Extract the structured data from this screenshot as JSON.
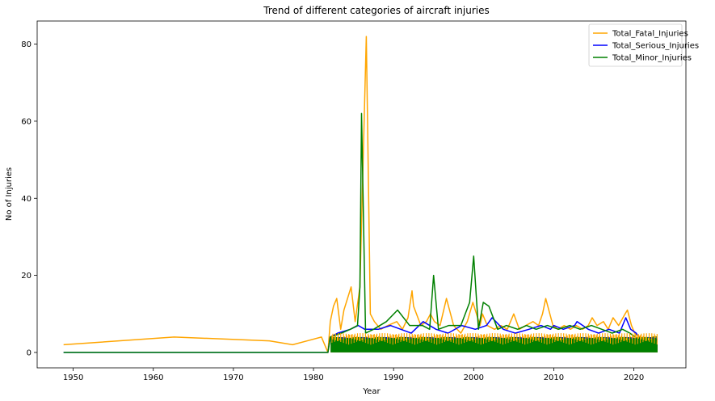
{
  "chart_data": {
    "type": "line",
    "title": "Trend of different categories of aircraft injuries",
    "xlabel": "Year",
    "ylabel": "No of Injuries",
    "xlim": [
      1945.5,
      2026.5
    ],
    "ylim": [
      -4,
      86
    ],
    "xticks": [
      1950,
      1960,
      1970,
      1980,
      1990,
      2000,
      2010,
      2020
    ],
    "yticks": [
      0,
      20,
      40,
      60,
      80
    ],
    "grid": false,
    "legend_position": "top-right",
    "series": [
      {
        "name": "Total_Fatal_Injuries",
        "color": "#ffa500",
        "points": [
          [
            1948.8,
            2
          ],
          [
            1962.6,
            4
          ],
          [
            1974.5,
            3
          ],
          [
            1977.4,
            2
          ],
          [
            1981.0,
            4
          ],
          [
            1981.8,
            0
          ],
          [
            1982.1,
            8
          ],
          [
            1982.5,
            12
          ],
          [
            1982.9,
            14
          ],
          [
            1983.4,
            6
          ],
          [
            1983.8,
            11
          ],
          [
            1984.7,
            17
          ],
          [
            1985.2,
            8
          ],
          [
            1985.8,
            17
          ],
          [
            1986.6,
            82
          ],
          [
            1987.1,
            10
          ],
          [
            1987.6,
            8
          ],
          [
            1988.4,
            6
          ],
          [
            1989.3,
            7
          ],
          [
            1990.4,
            8
          ],
          [
            1991.1,
            6
          ],
          [
            1991.8,
            9
          ],
          [
            1992.3,
            16
          ],
          [
            1992.5,
            12
          ],
          [
            1993.4,
            7
          ],
          [
            1994.1,
            8
          ],
          [
            1994.6,
            10
          ],
          [
            1995.1,
            8
          ],
          [
            1995.8,
            7
          ],
          [
            1996.6,
            14
          ],
          [
            1997.5,
            7
          ],
          [
            1998.4,
            5
          ],
          [
            1999.2,
            8
          ],
          [
            1999.9,
            13
          ],
          [
            2000.8,
            7
          ],
          [
            2001.1,
            10
          ],
          [
            2001.7,
            7
          ],
          [
            2002.6,
            6
          ],
          [
            2003.4,
            7
          ],
          [
            2004.2,
            6
          ],
          [
            2005.0,
            10
          ],
          [
            2005.7,
            6
          ],
          [
            2006.5,
            7
          ],
          [
            2007.4,
            8
          ],
          [
            2008.1,
            7
          ],
          [
            2008.6,
            10
          ],
          [
            2009.0,
            14
          ],
          [
            2009.9,
            7
          ],
          [
            2010.5,
            6
          ],
          [
            2011.3,
            7
          ],
          [
            2012.1,
            6
          ],
          [
            2012.8,
            7
          ],
          [
            2013.6,
            6
          ],
          [
            2014.3,
            7
          ],
          [
            2014.8,
            9
          ],
          [
            2015.4,
            7
          ],
          [
            2016.2,
            8
          ],
          [
            2016.8,
            6
          ],
          [
            2017.4,
            9
          ],
          [
            2018.1,
            7
          ],
          [
            2018.9,
            10
          ],
          [
            2019.2,
            11
          ],
          [
            2019.7,
            7
          ],
          [
            2020.1,
            5
          ],
          [
            2020.8,
            4
          ],
          [
            2021.5,
            3
          ],
          [
            2022.3,
            4
          ],
          [
            2022.9,
            2
          ]
        ]
      },
      {
        "name": "Total_Serious_Injuries",
        "color": "#0000ff",
        "points": [
          [
            1948.8,
            0
          ],
          [
            1981.8,
            0
          ],
          [
            1982.1,
            4
          ],
          [
            1983.0,
            5
          ],
          [
            1984.6,
            6
          ],
          [
            1985.6,
            7
          ],
          [
            1986.4,
            6
          ],
          [
            1988.1,
            6
          ],
          [
            1989.6,
            7
          ],
          [
            1990.9,
            6
          ],
          [
            1992.2,
            5
          ],
          [
            1993.7,
            8
          ],
          [
            1995.3,
            6
          ],
          [
            1996.8,
            5
          ],
          [
            1998.5,
            7
          ],
          [
            2000.2,
            6
          ],
          [
            2001.6,
            7
          ],
          [
            2002.3,
            9
          ],
          [
            2003.7,
            6
          ],
          [
            2005.2,
            5
          ],
          [
            2006.9,
            6
          ],
          [
            2008.4,
            7
          ],
          [
            2009.6,
            6
          ],
          [
            2010.0,
            7
          ],
          [
            2011.2,
            6
          ],
          [
            2012.6,
            7
          ],
          [
            2012.9,
            8
          ],
          [
            2014.3,
            6
          ],
          [
            2015.6,
            5
          ],
          [
            2016.9,
            6
          ],
          [
            2018.2,
            5
          ],
          [
            2019.0,
            9
          ],
          [
            2019.6,
            6
          ],
          [
            2020.3,
            5
          ],
          [
            2020.9,
            3
          ],
          [
            2021.4,
            2
          ],
          [
            2022.1,
            3
          ],
          [
            2022.9,
            2
          ]
        ]
      },
      {
        "name": "Total_Minor_Injuries",
        "color": "#008000",
        "points": [
          [
            1948.8,
            0
          ],
          [
            1981.8,
            0
          ],
          [
            1982.1,
            4
          ],
          [
            1983.5,
            5
          ],
          [
            1984.6,
            6
          ],
          [
            1985.5,
            7
          ],
          [
            1985.8,
            17
          ],
          [
            1986.0,
            62
          ],
          [
            1986.5,
            5
          ],
          [
            1987.5,
            6
          ],
          [
            1989.1,
            8
          ],
          [
            1990.5,
            11
          ],
          [
            1992.0,
            7
          ],
          [
            1992.8,
            7
          ],
          [
            1993.6,
            7
          ],
          [
            1994.5,
            6
          ],
          [
            1995.0,
            20
          ],
          [
            1995.6,
            6
          ],
          [
            1996.9,
            7
          ],
          [
            1998.4,
            7
          ],
          [
            1999.5,
            13
          ],
          [
            2000.0,
            25
          ],
          [
            2000.6,
            6
          ],
          [
            2001.2,
            13
          ],
          [
            2001.9,
            12
          ],
          [
            2003.0,
            6
          ],
          [
            2004.1,
            7
          ],
          [
            2005.5,
            6
          ],
          [
            2006.6,
            7
          ],
          [
            2007.8,
            6
          ],
          [
            2009.2,
            7
          ],
          [
            2010.6,
            6
          ],
          [
            2012.0,
            7
          ],
          [
            2013.3,
            6
          ],
          [
            2014.7,
            7
          ],
          [
            2016.0,
            6
          ],
          [
            2017.3,
            5
          ],
          [
            2018.6,
            6
          ],
          [
            2019.5,
            5
          ],
          [
            2020.2,
            4
          ],
          [
            2021.0,
            3
          ],
          [
            2021.8,
            3
          ],
          [
            2022.4,
            4
          ],
          [
            2022.9,
            4
          ]
        ]
      }
    ]
  }
}
